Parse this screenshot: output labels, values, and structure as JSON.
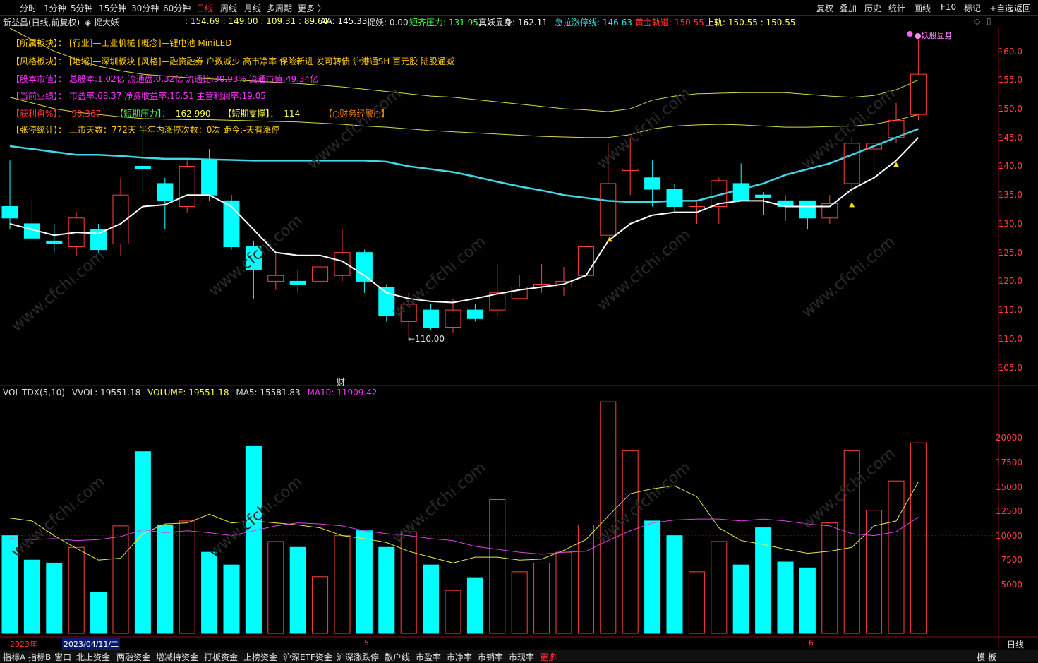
{
  "topbar": {
    "periods": [
      "分时",
      "1分钟",
      "5分钟",
      "15分钟",
      "30分钟",
      "60分钟",
      "日线",
      "周线",
      "月线",
      "多周期",
      "更多 〉"
    ],
    "active_period": "日线",
    "right_buttons": [
      "复权",
      "叠加",
      "历史",
      "统计",
      "画线",
      "F10",
      "标记",
      "+自选",
      "返回"
    ]
  },
  "info": {
    "stock_title": "新益昌(日线,前复权)",
    "indicator": "◈ 捉大妖",
    "values": ": 154.69 : 149.00 : 109.31 : 89.64",
    "aa": "AA: 145.33",
    "zhuoyao": "捉妖: 0.00",
    "short_pressure": "短齐压力: 131.95",
    "true_demon": "真妖显身: 162.11",
    "rapid_limit": "急拉涨停线: 146.63",
    "golden_track": "黄金轨道: 150.55",
    "upper_track": "上轨: 150.55 : 150.55"
  },
  "overlay": {
    "sector_label": "【所属板块】：",
    "sector_value": "[行业]—工业机械 [概念]—锂电池 MiniLED",
    "style_label": "【风格板块】：",
    "style_value": "[地域]—深圳板块 [风格]—融资融券 户数减少 高市净率 保险新进 发可转债 沪港通SH 百元股 陆股通减",
    "cap_label": "【股本市值】：",
    "cap_value": "总股本:1.02亿 流通盘:0.32亿 流通比:30.93% 流通市值:49.34亿",
    "perf_label": "【当前业绩】：",
    "perf_value": "市盈率:68.37 净资收益率:16.51 主营利润率:19.05",
    "profit_label": "【获利盘%】：",
    "profit_value": "98.367",
    "short_press_label": "【短期压力】：",
    "short_press_value": "162.990",
    "short_support_label": "【短期支撑】：",
    "short_support_value": "114",
    "finance_label": "【○财务经警○】",
    "limit_label": "【张停统计】：",
    "limit_value": "上市天数：772天 半年内涨停次数：0次 距今:-天有涨停",
    "low_marker": "←110.00",
    "cai_marker": "财",
    "peak_marker": "●妖股显身"
  },
  "price_axis": [
    "160.0",
    "155.0",
    "150.0",
    "145.0",
    "140.0",
    "135.0",
    "130.0",
    "125.0",
    "120.0",
    "115.0",
    "110.0",
    "105.0"
  ],
  "vol_legend": {
    "name": "VOL-TDX(5,10)",
    "vvol": "VVOL: 19551.18",
    "volume": "VOLUME: 19551.18",
    "ma5": "MA5: 15581.83",
    "ma10": "MA10: 11909.42"
  },
  "vol_axis": [
    "20000",
    "17500",
    "15000",
    "12500",
    "10000",
    "7500",
    "5000"
  ],
  "dates": {
    "year": "2023年",
    "cursor": "2023/04/11/二",
    "m5": "5",
    "m6": "6",
    "period": "日线"
  },
  "bottom_tabs": [
    "指标A",
    "指标B",
    "窗口",
    "北上资金",
    "两融资金",
    "增减持资金",
    "打板资金",
    "上榜资金",
    "沪深ETF资金",
    "沪深涨跌停",
    "散户线",
    "市盈率",
    "市净率",
    "市销率",
    "市现率",
    "更多"
  ],
  "bottom_right": [
    "模",
    "板"
  ],
  "watermark": "www.cfchi.com",
  "chart_data": {
    "type": "candlestick",
    "price_range": [
      102,
      164
    ],
    "volume_range": [
      0,
      24000
    ],
    "candles": [
      {
        "o": 133,
        "c": 131,
        "h": 141,
        "l": 129,
        "v": 10000
      },
      {
        "o": 130,
        "c": 127.5,
        "h": 134,
        "l": 127,
        "v": 7500
      },
      {
        "o": 127,
        "c": 126.5,
        "h": 130,
        "l": 125,
        "v": 7200
      },
      {
        "o": 126,
        "c": 131,
        "h": 132,
        "l": 124.5,
        "v": 8800
      },
      {
        "o": 129,
        "c": 125.5,
        "h": 130,
        "l": 125,
        "v": 4200
      },
      {
        "o": 126.5,
        "c": 135,
        "h": 138,
        "l": 124.5,
        "v": 11000
      },
      {
        "o": 140,
        "c": 139.5,
        "h": 147,
        "l": 135,
        "v": 18600
      },
      {
        "o": 137,
        "c": 134,
        "h": 138,
        "l": 129,
        "v": 11100
      },
      {
        "o": 133,
        "c": 140,
        "h": 141,
        "l": 132,
        "v": 11500
      },
      {
        "o": 141,
        "c": 135,
        "h": 143,
        "l": 134,
        "v": 8300
      },
      {
        "o": 134,
        "c": 126,
        "h": 135,
        "l": 125.5,
        "v": 7000
      },
      {
        "o": 126,
        "c": 122,
        "h": 127,
        "l": 117,
        "v": 19200
      },
      {
        "o": 120,
        "c": 121,
        "h": 125,
        "l": 118.5,
        "v": 9400
      },
      {
        "o": 120,
        "c": 119.5,
        "h": 122,
        "l": 118,
        "v": 8800
      },
      {
        "o": 120,
        "c": 122.5,
        "h": 125,
        "l": 119,
        "v": 5800
      },
      {
        "o": 121,
        "c": 125,
        "h": 129,
        "l": 120,
        "v": 10000
      },
      {
        "o": 125,
        "c": 120,
        "h": 125.5,
        "l": 118,
        "v": 10500
      },
      {
        "o": 119,
        "c": 114,
        "h": 119.5,
        "l": 113,
        "v": 8800
      },
      {
        "o": 113,
        "c": 116,
        "h": 118,
        "l": 110,
        "v": 10400
      },
      {
        "o": 115,
        "c": 112,
        "h": 116,
        "l": 111.5,
        "v": 7000
      },
      {
        "o": 112,
        "c": 115,
        "h": 117,
        "l": 111,
        "v": 4400
      },
      {
        "o": 115,
        "c": 113.5,
        "h": 116,
        "l": 113,
        "v": 5700
      },
      {
        "o": 115,
        "c": 118,
        "h": 123,
        "l": 114,
        "v": 13700
      },
      {
        "o": 117,
        "c": 119,
        "h": 121,
        "l": 117,
        "v": 6300
      },
      {
        "o": 119,
        "c": 119.5,
        "h": 123,
        "l": 118,
        "v": 7200
      },
      {
        "o": 119,
        "c": 120,
        "h": 122.5,
        "l": 117.5,
        "v": 8300
      },
      {
        "o": 121,
        "c": 126,
        "h": 126,
        "l": 120,
        "v": 11100
      },
      {
        "o": 128,
        "c": 137,
        "h": 144,
        "l": 128,
        "v": 23700
      },
      {
        "o": 139.5,
        "c": 139.5,
        "h": 145,
        "l": 135,
        "v": 18700
      },
      {
        "o": 138,
        "c": 136,
        "h": 141,
        "l": 133,
        "v": 11500
      },
      {
        "o": 136,
        "c": 133,
        "h": 137,
        "l": 132,
        "v": 10000
      },
      {
        "o": 133,
        "c": 133,
        "h": 134,
        "l": 130,
        "v": 6300
      },
      {
        "o": 133,
        "c": 137.5,
        "h": 138,
        "l": 130,
        "v": 9400
      },
      {
        "o": 137,
        "c": 134,
        "h": 140.5,
        "l": 134,
        "v": 7000
      },
      {
        "o": 135,
        "c": 134.5,
        "h": 135.5,
        "l": 131.5,
        "v": 10800
      },
      {
        "o": 134,
        "c": 133,
        "h": 135,
        "l": 130.5,
        "v": 7300
      },
      {
        "o": 134,
        "c": 131,
        "h": 134,
        "l": 129,
        "v": 6700
      },
      {
        "o": 131,
        "c": 133.5,
        "h": 135,
        "l": 130,
        "v": 11300
      },
      {
        "o": 137,
        "c": 144,
        "h": 145,
        "l": 135,
        "v": 18700
      },
      {
        "o": 143,
        "c": 144,
        "h": 145,
        "l": 139,
        "v": 12600
      },
      {
        "o": 145,
        "c": 148,
        "h": 151,
        "l": 144,
        "v": 15600
      },
      {
        "o": 149,
        "c": 156,
        "h": 162,
        "l": 148,
        "v": 19500
      }
    ],
    "ma_white": [
      130,
      129,
      128,
      128.5,
      128.3,
      130,
      133,
      133.3,
      135,
      135,
      133,
      129,
      125,
      124.5,
      124.5,
      123.5,
      121,
      118,
      117,
      116.5,
      116.3,
      117,
      117.8,
      118.5,
      119,
      119.5,
      121,
      127,
      130,
      131.5,
      132,
      132,
      133.5,
      134,
      134,
      133,
      133,
      133,
      136,
      138,
      141,
      145
    ],
    "ma_cyan": [
      143.5,
      143,
      142.5,
      142,
      142,
      141.8,
      141.5,
      141.3,
      141.3,
      141.2,
      141.1,
      141,
      141,
      141,
      141,
      141,
      141,
      140.8,
      140,
      139.5,
      139,
      138.2,
      137.3,
      136.5,
      135.8,
      135,
      134.5,
      134,
      133.8,
      133.8,
      134,
      134,
      135,
      136,
      137,
      138.5,
      139.5,
      140.5,
      142,
      143.5,
      145,
      146.5
    ],
    "ma_yellow_upper": [
      164,
      162,
      160,
      158.6,
      157.4,
      156.6,
      156,
      155.7,
      155.4,
      155.2,
      155,
      154.8,
      154.6,
      154.4,
      154.1,
      153.8,
      153.4,
      153,
      152.6,
      152.2,
      152,
      151.6,
      151.2,
      150.8,
      150.4,
      150,
      149.8,
      149.5,
      150,
      151.5,
      152.2,
      152.6,
      152.7,
      152.8,
      152.8,
      152.8,
      152.5,
      152.2,
      152,
      152.3,
      153.3,
      155
    ],
    "ma_yellow_lower": [
      152,
      151,
      150,
      149.4,
      149,
      148.6,
      148.3,
      148.2,
      148.1,
      148.1,
      148,
      147.9,
      147.8,
      147.7,
      147.5,
      147.3,
      147,
      146.8,
      146.5,
      146.2,
      146,
      145.8,
      145.6,
      145.4,
      145.2,
      145.1,
      145,
      145,
      145.5,
      146.5,
      147,
      147.2,
      147.3,
      147.2,
      147,
      146.8,
      146.8,
      146.9,
      147,
      147.3,
      148,
      149
    ],
    "vol_ma5": [
      11800,
      11500,
      10000,
      8700,
      7500,
      7700,
      10200,
      11200,
      11300,
      12200,
      11300,
      11500,
      11300,
      11100,
      10800,
      10000,
      9700,
      9300,
      8400,
      7800,
      7200,
      7800,
      7800,
      7500,
      7600,
      8500,
      9600,
      12000,
      14300,
      14800,
      15100,
      14000,
      10800,
      9500,
      9100,
      8600,
      8200,
      8400,
      8800,
      11000,
      11500,
      15500
    ],
    "vol_ma10": [
      9700,
      9600,
      9700,
      9500,
      9600,
      9900,
      10600,
      10300,
      10500,
      10300,
      10000,
      10500,
      11000,
      11300,
      11200,
      11000,
      10500,
      10200,
      10000,
      9700,
      9500,
      8900,
      8600,
      8300,
      8100,
      8300,
      8400,
      9500,
      10500,
      11300,
      11600,
      11700,
      11700,
      11500,
      11700,
      11500,
      11200,
      11000,
      10200,
      10000,
      10400,
      11900
    ]
  }
}
